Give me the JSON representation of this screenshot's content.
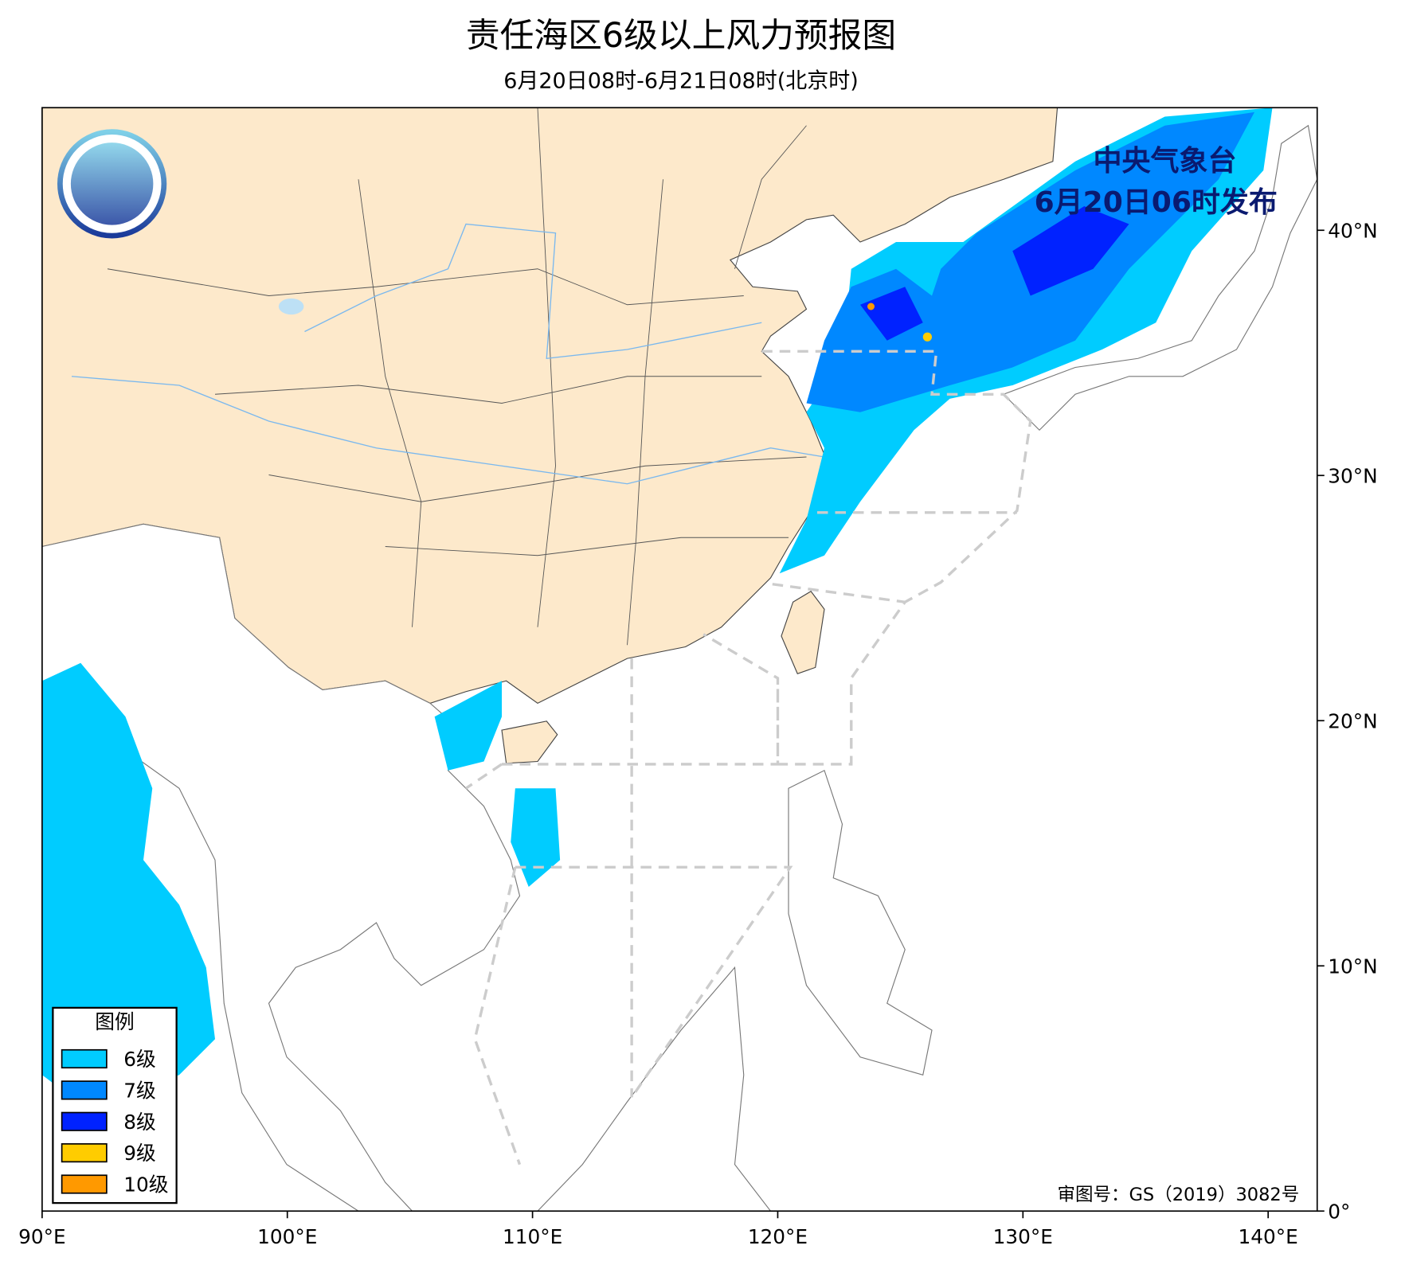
{
  "header": {
    "title": "责任海区6级以上风力预报图",
    "subtitle": "6月20日08时-6月21日08时(北京时)"
  },
  "publisher": {
    "name": "中央气象台",
    "issued": "6月20日06时发布"
  },
  "map": {
    "xlim": [
      90,
      142
    ],
    "ylim": [
      0,
      45
    ],
    "xticks": [
      {
        "value": 90,
        "label": "90°E"
      },
      {
        "value": 100,
        "label": "100°E"
      },
      {
        "value": 110,
        "label": "110°E"
      },
      {
        "value": 120,
        "label": "120°E"
      },
      {
        "value": 130,
        "label": "130°E"
      },
      {
        "value": 140,
        "label": "140°E"
      }
    ],
    "yticks": [
      {
        "value": 0,
        "label": "0°"
      },
      {
        "value": 10,
        "label": "10°N"
      },
      {
        "value": 20,
        "label": "20°N"
      },
      {
        "value": 30,
        "label": "30°N"
      },
      {
        "value": 40,
        "label": "40°N"
      }
    ]
  },
  "legend": {
    "title": "图例",
    "items": [
      {
        "label": "6级",
        "color": "#00ccff"
      },
      {
        "label": "7级",
        "color": "#0088ff"
      },
      {
        "label": "8级",
        "color": "#0022ff"
      },
      {
        "label": "9级",
        "color": "#ffcc00"
      },
      {
        "label": "10级",
        "color": "#ff9900"
      }
    ]
  },
  "approval": "审图号：GS（2019）3082号"
}
